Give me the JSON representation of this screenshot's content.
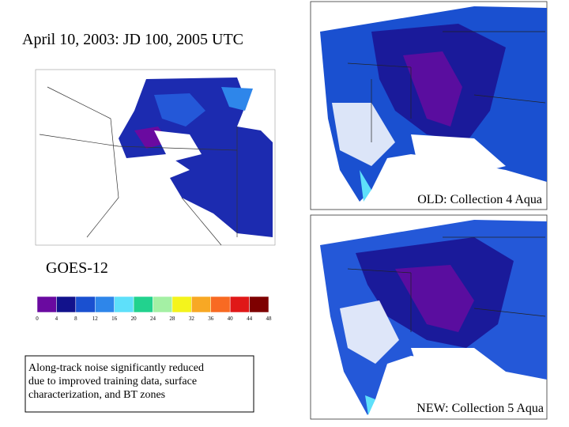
{
  "title": "April 10, 2003: JD 100, 2005 UTC",
  "panels": [
    {
      "label": "GOES-12"
    },
    {
      "label": "OLD: Collection 4 Aqua"
    },
    {
      "label": "NEW: Collection 5 Aqua"
    }
  ],
  "colorbar": {
    "colors": [
      "#6a0aa0",
      "#12128c",
      "#1a50d0",
      "#2e86ea",
      "#5ee0fa",
      "#22d28e",
      "#a4f0a4",
      "#f4f41c",
      "#f8a824",
      "#f86a22",
      "#e01818",
      "#7e0000"
    ],
    "ticks": [
      0,
      4,
      8,
      12,
      16,
      20,
      24,
      28,
      32,
      36,
      40,
      44,
      48
    ]
  },
  "note": [
    "Along-track noise significantly reduced",
    "due to improved training data, surface",
    "characterization, and BT zones"
  ]
}
